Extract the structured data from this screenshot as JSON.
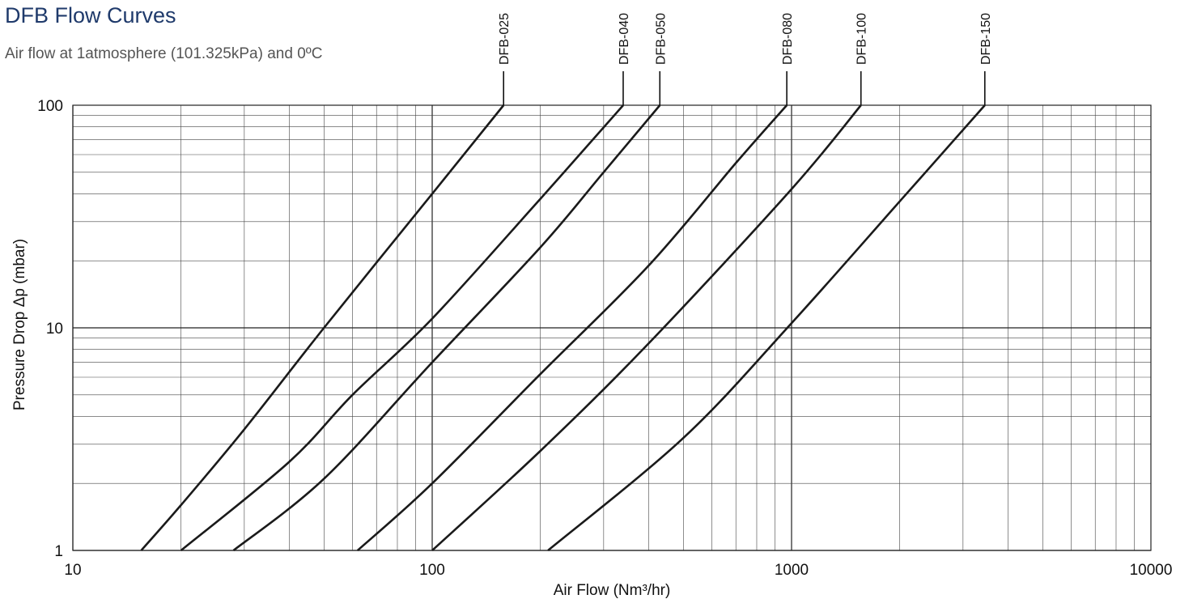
{
  "header": {
    "title": "DFB Flow Curves",
    "subtitle": "Air flow at 1atmosphere (101.325kPa) and 0ºC"
  },
  "chart_data": {
    "type": "line",
    "title": "DFB Flow Curves",
    "subtitle": "Air flow at 1atmosphere (101.325kPa) and 0ºC",
    "xlabel": "Air Flow (Nm³/hr)",
    "ylabel": "Pressure Drop  Δp (mbar)",
    "xscale": "log",
    "yscale": "log",
    "xlim": [
      10,
      10000
    ],
    "ylim": [
      1,
      100
    ],
    "xticks": [
      10,
      100,
      1000,
      10000
    ],
    "xtick_labels": [
      "10",
      "100",
      "1000",
      "10000"
    ],
    "yticks": [
      1,
      10,
      100
    ],
    "ytick_labels": [
      "1",
      "10",
      "100"
    ],
    "grid": true,
    "line_color": "#1a1a1a",
    "series_label_position": "top, above each curve end",
    "series": [
      {
        "name": "DFB-025",
        "x": [
          15.5,
          20,
          30,
          50,
          100,
          158
        ],
        "y": [
          1,
          1.6,
          3.5,
          10,
          40,
          100
        ]
      },
      {
        "name": "DFB-040",
        "x": [
          20,
          40,
          60,
          100,
          200,
          340
        ],
        "y": [
          1,
          2.5,
          5,
          11,
          38,
          100
        ]
      },
      {
        "name": "DFB-050",
        "x": [
          28,
          50,
          100,
          200,
          300,
          430
        ],
        "y": [
          1,
          2.1,
          7,
          23,
          50,
          100
        ]
      },
      {
        "name": "DFB-080",
        "x": [
          62,
          100,
          200,
          400,
          700,
          970
        ],
        "y": [
          1,
          2,
          6.2,
          19,
          55,
          100
        ]
      },
      {
        "name": "DFB-100",
        "x": [
          100,
          200,
          400,
          1000,
          1560
        ],
        "y": [
          1,
          2.8,
          8.5,
          42,
          100
        ]
      },
      {
        "name": "DFB-150",
        "x": [
          210,
          500,
          1000,
          2000,
          3450
        ],
        "y": [
          1,
          3.2,
          10.5,
          37,
          100
        ]
      }
    ]
  }
}
